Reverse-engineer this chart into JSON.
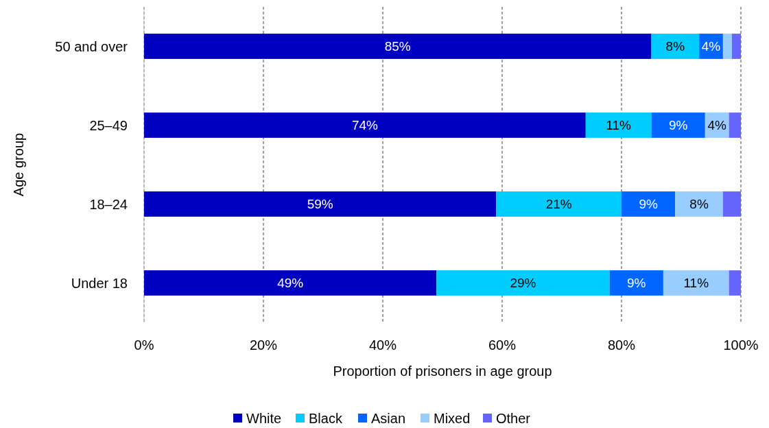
{
  "chart_data": {
    "type": "bar",
    "orientation": "horizontal",
    "stacked": true,
    "xlabel": "Proportion of prisoners in age group",
    "ylabel": "Age group",
    "categories": [
      "50 and over",
      "25–49",
      "18–24",
      "Under 18"
    ],
    "series": [
      {
        "name": "White",
        "color": "#0000c0",
        "values": [
          85,
          74,
          59,
          49
        ],
        "value_labels": [
          "85%",
          "74%",
          "59%",
          "49%"
        ]
      },
      {
        "name": "Black",
        "color": "#00ccff",
        "values": [
          8,
          11,
          21,
          29
        ],
        "value_labels": [
          "8%",
          "11%",
          "21%",
          "29%"
        ]
      },
      {
        "name": "Asian",
        "color": "#0066ff",
        "values": [
          4,
          9,
          9,
          9
        ],
        "value_labels": [
          "4%",
          "9%",
          "9%",
          "9%"
        ]
      },
      {
        "name": "Mixed",
        "color": "#99ccff",
        "values": [
          1.5,
          4,
          8,
          11
        ],
        "value_labels": [
          null,
          "4%",
          "8%",
          "11%"
        ]
      },
      {
        "name": "Other",
        "color": "#6666ff",
        "values": [
          1.5,
          2,
          3,
          2
        ],
        "value_labels": [
          null,
          null,
          null,
          null
        ]
      }
    ],
    "xlim": [
      0,
      100
    ],
    "xticks": [
      {
        "value": 0,
        "label": "0%"
      },
      {
        "value": 20,
        "label": "20%"
      },
      {
        "value": 40,
        "label": "40%"
      },
      {
        "value": 60,
        "label": "60%"
      },
      {
        "value": 80,
        "label": "80%"
      },
      {
        "value": 100,
        "label": "100%"
      }
    ],
    "grid": "x",
    "legend": "bottom"
  }
}
